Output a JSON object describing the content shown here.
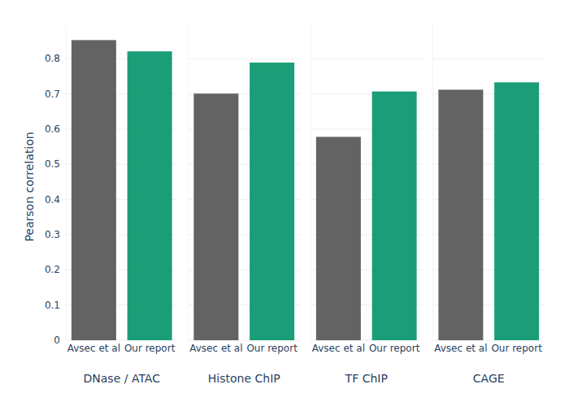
{
  "chart_data": [
    {
      "type": "bar",
      "title": "DNase / ATAC",
      "ylabel": "Pearson correlation",
      "categories": [
        "Avsec et al",
        "Our report"
      ],
      "values": [
        0.853,
        0.821
      ],
      "colors": [
        "#636363",
        "#1b9e77"
      ],
      "ylim": [
        0,
        0.9
      ],
      "yticks": [
        0,
        0.1,
        0.2,
        0.3,
        0.4,
        0.5,
        0.6,
        0.7,
        0.8
      ],
      "grid": true
    },
    {
      "type": "bar",
      "title": "Histone ChIP",
      "categories": [
        "Avsec et al",
        "Our report"
      ],
      "values": [
        0.701,
        0.789
      ],
      "colors": [
        "#636363",
        "#1b9e77"
      ],
      "ylim": [
        0,
        0.9
      ],
      "yticks": [
        0,
        0.1,
        0.2,
        0.3,
        0.4,
        0.5,
        0.6,
        0.7,
        0.8
      ],
      "grid": true,
      "tick_labels": "x"
    },
    {
      "type": "bar",
      "title": "TF ChIP",
      "categories": [
        "Avsec et al",
        "Our report"
      ],
      "values": [
        0.578,
        0.707
      ],
      "colors": [
        "#636363",
        "#1b9e77"
      ],
      "ylim": [
        0,
        0.9
      ],
      "yticks": [
        0,
        0.1,
        0.2,
        0.3,
        0.4,
        0.5,
        0.6,
        0.7,
        0.8
      ],
      "grid": true,
      "tick_labels": "x"
    },
    {
      "type": "bar",
      "title": "CAGE",
      "categories": [
        "Avsec et al",
        "Our report"
      ],
      "values": [
        0.712,
        0.733
      ],
      "colors": [
        "#636363",
        "#1b9e77"
      ],
      "ylim": [
        0,
        0.9
      ],
      "yticks": [
        0,
        0.1,
        0.2,
        0.3,
        0.4,
        0.5,
        0.6,
        0.7,
        0.8
      ],
      "grid": true,
      "tick_labels": "x"
    }
  ]
}
